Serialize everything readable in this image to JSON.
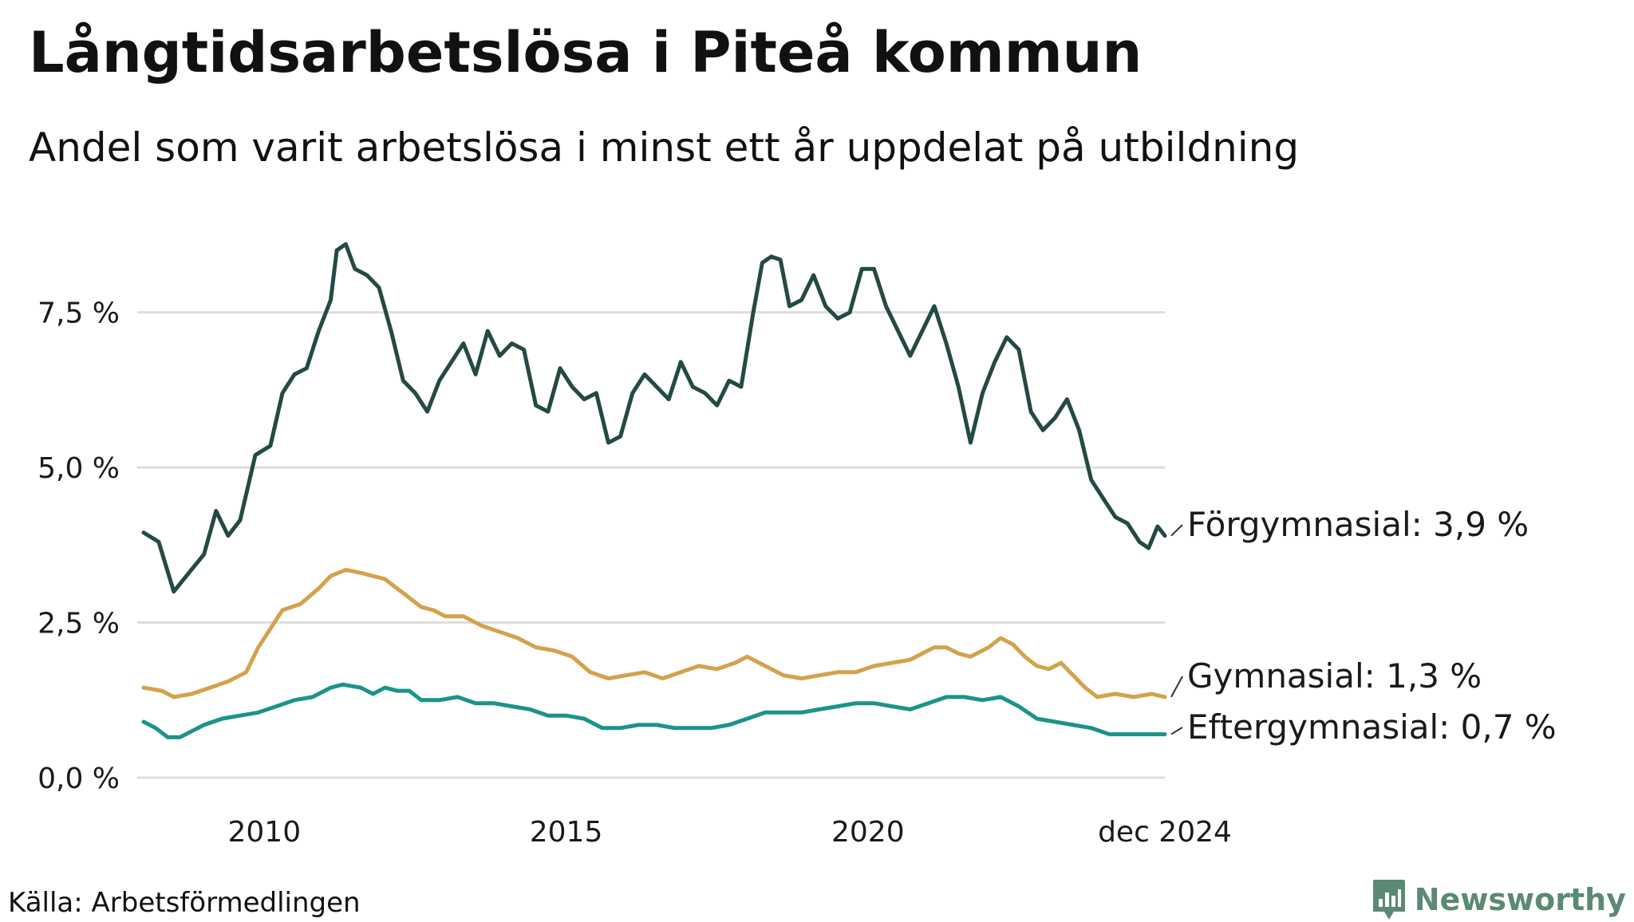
{
  "header": {
    "title": "Långtidsarbetslösa i Piteå kommun",
    "subtitle": "Andel som varit arbetslösa i minst ett år uppdelat på utbildning"
  },
  "footer": {
    "source": "Källa: Arbetsförmedlingen",
    "brand": "Newsworthy",
    "brand_color": "#5a8a73"
  },
  "chart_data": {
    "type": "line",
    "title": "Långtidsarbetslösa i Piteå kommun",
    "subtitle": "Andel som varit arbetslösa i minst ett år uppdelat på utbildning",
    "xlabel": "",
    "ylabel": "",
    "x_range": [
      2008.0,
      2024.92
    ],
    "ylim": [
      0,
      9.0
    ],
    "x_ticks": [
      {
        "value": 2010,
        "label": "2010"
      },
      {
        "value": 2015,
        "label": "2015"
      },
      {
        "value": 2020,
        "label": "2020"
      },
      {
        "value": 2024.92,
        "label": "dec 2024"
      }
    ],
    "y_ticks": [
      {
        "value": 0,
        "label": "0,0 %"
      },
      {
        "value": 2.5,
        "label": "2,5 %"
      },
      {
        "value": 5.0,
        "label": "5,0 %"
      },
      {
        "value": 7.5,
        "label": "7,5 %"
      }
    ],
    "grid": true,
    "series": [
      {
        "name": "Förgymnasial",
        "end_label": "Förgymnasial: 3,9 %",
        "color": "#234a45",
        "points": [
          [
            2008.0,
            3.95
          ],
          [
            2008.25,
            3.8
          ],
          [
            2008.5,
            3.0
          ],
          [
            2008.75,
            3.3
          ],
          [
            2009.0,
            3.6
          ],
          [
            2009.2,
            4.3
          ],
          [
            2009.4,
            3.9
          ],
          [
            2009.6,
            4.15
          ],
          [
            2009.85,
            5.2
          ],
          [
            2010.1,
            5.35
          ],
          [
            2010.3,
            6.2
          ],
          [
            2010.5,
            6.5
          ],
          [
            2010.7,
            6.6
          ],
          [
            2010.9,
            7.2
          ],
          [
            2011.1,
            7.7
          ],
          [
            2011.2,
            8.5
          ],
          [
            2011.35,
            8.6
          ],
          [
            2011.5,
            8.2
          ],
          [
            2011.7,
            8.1
          ],
          [
            2011.9,
            7.9
          ],
          [
            2012.1,
            7.2
          ],
          [
            2012.3,
            6.4
          ],
          [
            2012.5,
            6.2
          ],
          [
            2012.7,
            5.9
          ],
          [
            2012.9,
            6.4
          ],
          [
            2013.1,
            6.7
          ],
          [
            2013.3,
            7.0
          ],
          [
            2013.5,
            6.5
          ],
          [
            2013.7,
            7.2
          ],
          [
            2013.9,
            6.8
          ],
          [
            2014.1,
            7.0
          ],
          [
            2014.3,
            6.9
          ],
          [
            2014.5,
            6.0
          ],
          [
            2014.7,
            5.9
          ],
          [
            2014.9,
            6.6
          ],
          [
            2015.1,
            6.3
          ],
          [
            2015.3,
            6.1
          ],
          [
            2015.5,
            6.2
          ],
          [
            2015.7,
            5.4
          ],
          [
            2015.9,
            5.5
          ],
          [
            2016.1,
            6.2
          ],
          [
            2016.3,
            6.5
          ],
          [
            2016.5,
            6.3
          ],
          [
            2016.7,
            6.1
          ],
          [
            2016.9,
            6.7
          ],
          [
            2017.1,
            6.3
          ],
          [
            2017.3,
            6.2
          ],
          [
            2017.5,
            6.0
          ],
          [
            2017.7,
            6.4
          ],
          [
            2017.9,
            6.3
          ],
          [
            2018.1,
            7.5
          ],
          [
            2018.25,
            8.3
          ],
          [
            2018.4,
            8.4
          ],
          [
            2018.55,
            8.35
          ],
          [
            2018.7,
            7.6
          ],
          [
            2018.9,
            7.7
          ],
          [
            2019.1,
            8.1
          ],
          [
            2019.3,
            7.6
          ],
          [
            2019.5,
            7.4
          ],
          [
            2019.7,
            7.5
          ],
          [
            2019.9,
            8.2
          ],
          [
            2020.1,
            8.2
          ],
          [
            2020.3,
            7.6
          ],
          [
            2020.5,
            7.2
          ],
          [
            2020.7,
            6.8
          ],
          [
            2020.9,
            7.2
          ],
          [
            2021.1,
            7.6
          ],
          [
            2021.3,
            7.0
          ],
          [
            2021.5,
            6.3
          ],
          [
            2021.7,
            5.4
          ],
          [
            2021.9,
            6.2
          ],
          [
            2022.1,
            6.7
          ],
          [
            2022.3,
            7.1
          ],
          [
            2022.5,
            6.9
          ],
          [
            2022.7,
            5.9
          ],
          [
            2022.9,
            5.6
          ],
          [
            2023.1,
            5.8
          ],
          [
            2023.3,
            6.1
          ],
          [
            2023.5,
            5.6
          ],
          [
            2023.7,
            4.8
          ],
          [
            2023.9,
            4.5
          ],
          [
            2024.1,
            4.2
          ],
          [
            2024.3,
            4.1
          ],
          [
            2024.5,
            3.8
          ],
          [
            2024.65,
            3.7
          ],
          [
            2024.8,
            4.05
          ],
          [
            2024.92,
            3.9
          ]
        ]
      },
      {
        "name": "Gymnasial",
        "end_label": "Gymnasial: 1,3 %",
        "color": "#d4a24c",
        "points": [
          [
            2008.0,
            1.45
          ],
          [
            2008.3,
            1.4
          ],
          [
            2008.5,
            1.3
          ],
          [
            2008.8,
            1.35
          ],
          [
            2009.1,
            1.45
          ],
          [
            2009.4,
            1.55
          ],
          [
            2009.7,
            1.7
          ],
          [
            2009.9,
            2.1
          ],
          [
            2010.1,
            2.4
          ],
          [
            2010.3,
            2.7
          ],
          [
            2010.6,
            2.8
          ],
          [
            2010.9,
            3.05
          ],
          [
            2011.1,
            3.25
          ],
          [
            2011.35,
            3.35
          ],
          [
            2011.6,
            3.3
          ],
          [
            2011.8,
            3.25
          ],
          [
            2012.0,
            3.2
          ],
          [
            2012.2,
            3.05
          ],
          [
            2012.4,
            2.9
          ],
          [
            2012.6,
            2.75
          ],
          [
            2012.8,
            2.7
          ],
          [
            2013.0,
            2.6
          ],
          [
            2013.3,
            2.6
          ],
          [
            2013.6,
            2.45
          ],
          [
            2013.9,
            2.35
          ],
          [
            2014.2,
            2.25
          ],
          [
            2014.5,
            2.1
          ],
          [
            2014.8,
            2.05
          ],
          [
            2015.1,
            1.95
          ],
          [
            2015.4,
            1.7
          ],
          [
            2015.7,
            1.6
          ],
          [
            2016.0,
            1.65
          ],
          [
            2016.3,
            1.7
          ],
          [
            2016.6,
            1.6
          ],
          [
            2016.9,
            1.7
          ],
          [
            2017.2,
            1.8
          ],
          [
            2017.5,
            1.75
          ],
          [
            2017.8,
            1.85
          ],
          [
            2018.0,
            1.95
          ],
          [
            2018.3,
            1.8
          ],
          [
            2018.6,
            1.65
          ],
          [
            2018.9,
            1.6
          ],
          [
            2019.2,
            1.65
          ],
          [
            2019.5,
            1.7
          ],
          [
            2019.8,
            1.7
          ],
          [
            2020.1,
            1.8
          ],
          [
            2020.4,
            1.85
          ],
          [
            2020.7,
            1.9
          ],
          [
            2020.9,
            2.0
          ],
          [
            2021.1,
            2.1
          ],
          [
            2021.3,
            2.1
          ],
          [
            2021.5,
            2.0
          ],
          [
            2021.7,
            1.95
          ],
          [
            2022.0,
            2.1
          ],
          [
            2022.2,
            2.25
          ],
          [
            2022.4,
            2.15
          ],
          [
            2022.6,
            1.95
          ],
          [
            2022.8,
            1.8
          ],
          [
            2023.0,
            1.75
          ],
          [
            2023.2,
            1.85
          ],
          [
            2023.4,
            1.65
          ],
          [
            2023.6,
            1.45
          ],
          [
            2023.8,
            1.3
          ],
          [
            2024.1,
            1.35
          ],
          [
            2024.4,
            1.3
          ],
          [
            2024.7,
            1.35
          ],
          [
            2024.92,
            1.3
          ]
        ]
      },
      {
        "name": "Eftergymnasial",
        "end_label": "Eftergymnasial: 0,7 %",
        "color": "#1b9488",
        "points": [
          [
            2008.0,
            0.9
          ],
          [
            2008.2,
            0.8
          ],
          [
            2008.4,
            0.65
          ],
          [
            2008.6,
            0.65
          ],
          [
            2008.8,
            0.75
          ],
          [
            2009.0,
            0.85
          ],
          [
            2009.3,
            0.95
          ],
          [
            2009.6,
            1.0
          ],
          [
            2009.9,
            1.05
          ],
          [
            2010.2,
            1.15
          ],
          [
            2010.5,
            1.25
          ],
          [
            2010.8,
            1.3
          ],
          [
            2011.1,
            1.45
          ],
          [
            2011.3,
            1.5
          ],
          [
            2011.6,
            1.45
          ],
          [
            2011.8,
            1.35
          ],
          [
            2012.0,
            1.45
          ],
          [
            2012.2,
            1.4
          ],
          [
            2012.4,
            1.4
          ],
          [
            2012.6,
            1.25
          ],
          [
            2012.9,
            1.25
          ],
          [
            2013.2,
            1.3
          ],
          [
            2013.5,
            1.2
          ],
          [
            2013.8,
            1.2
          ],
          [
            2014.1,
            1.15
          ],
          [
            2014.4,
            1.1
          ],
          [
            2014.7,
            1.0
          ],
          [
            2015.0,
            1.0
          ],
          [
            2015.3,
            0.95
          ],
          [
            2015.6,
            0.8
          ],
          [
            2015.9,
            0.8
          ],
          [
            2016.2,
            0.85
          ],
          [
            2016.5,
            0.85
          ],
          [
            2016.8,
            0.8
          ],
          [
            2017.1,
            0.8
          ],
          [
            2017.4,
            0.8
          ],
          [
            2017.7,
            0.85
          ],
          [
            2018.0,
            0.95
          ],
          [
            2018.3,
            1.05
          ],
          [
            2018.6,
            1.05
          ],
          [
            2018.9,
            1.05
          ],
          [
            2019.2,
            1.1
          ],
          [
            2019.5,
            1.15
          ],
          [
            2019.8,
            1.2
          ],
          [
            2020.1,
            1.2
          ],
          [
            2020.4,
            1.15
          ],
          [
            2020.7,
            1.1
          ],
          [
            2021.0,
            1.2
          ],
          [
            2021.3,
            1.3
          ],
          [
            2021.6,
            1.3
          ],
          [
            2021.9,
            1.25
          ],
          [
            2022.2,
            1.3
          ],
          [
            2022.5,
            1.15
          ],
          [
            2022.8,
            0.95
          ],
          [
            2023.1,
            0.9
          ],
          [
            2023.4,
            0.85
          ],
          [
            2023.7,
            0.8
          ],
          [
            2024.0,
            0.7
          ],
          [
            2024.3,
            0.7
          ],
          [
            2024.6,
            0.7
          ],
          [
            2024.92,
            0.7
          ]
        ]
      }
    ]
  }
}
